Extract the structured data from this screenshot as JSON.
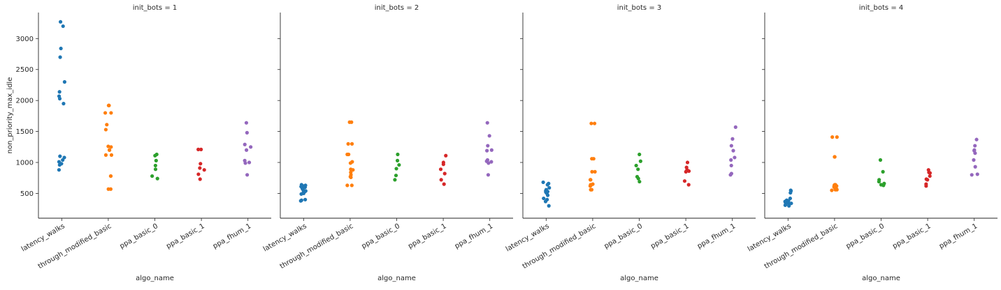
{
  "chart_data": {
    "type": "scatter",
    "kind": "strip",
    "xlabel": "algo_name",
    "ylabel": "non_priority_max_idle",
    "ylim": [
      100,
      3420
    ],
    "yticks": [
      500,
      1000,
      1500,
      2000,
      2500,
      3000
    ],
    "grid": false,
    "categories": [
      "latency_walks",
      "through_modified_basic",
      "ppa_basic_0",
      "ppa_basic_1",
      "ppa_fhum_1"
    ],
    "colors": [
      "#1f77b4",
      "#ff7f0e",
      "#2ca02c",
      "#d62728",
      "#9467bd"
    ],
    "facets": [
      {
        "title": "init_bots = 1",
        "values": {
          "latency_walks": [
            3270,
            3200,
            2840,
            2700,
            2300,
            2140,
            2070,
            2030,
            1950,
            1100,
            1080,
            1040,
            1010,
            980,
            960,
            880
          ],
          "through_modified_basic": [
            1920,
            1920,
            1800,
            1800,
            1610,
            1530,
            1260,
            1250,
            1200,
            1200,
            1120,
            1120,
            780,
            780,
            570,
            570
          ],
          "ppa_basic_0": [
            1130,
            1110,
            1030,
            950,
            890,
            780,
            740
          ],
          "ppa_basic_1": [
            1210,
            1210,
            980,
            910,
            880,
            810,
            730
          ],
          "ppa_fhum_1": [
            1640,
            1480,
            1290,
            1250,
            1200,
            1030,
            1000,
            990,
            800
          ]
        }
      },
      {
        "title": "init_bots = 2",
        "values": {
          "latency_walks": [
            640,
            630,
            620,
            610,
            600,
            580,
            560,
            540,
            530,
            520,
            500,
            490,
            400,
            390,
            380
          ],
          "through_modified_basic": [
            1650,
            1650,
            1300,
            1300,
            1130,
            1130,
            1010,
            990,
            890,
            880,
            840,
            800,
            770,
            760,
            630,
            630
          ],
          "ppa_basic_0": [
            1130,
            1030,
            960,
            900,
            790,
            720
          ],
          "ppa_basic_1": [
            1110,
            1000,
            970,
            890,
            820,
            720,
            650
          ],
          "ppa_fhum_1": [
            1640,
            1430,
            1270,
            1200,
            1190,
            1040,
            1020,
            1010,
            990,
            800
          ]
        }
      },
      {
        "title": "init_bots = 3",
        "values": {
          "latency_walks": [
            680,
            660,
            640,
            590,
            560,
            540,
            530,
            520,
            500,
            470,
            420,
            400,
            370,
            300
          ],
          "through_modified_basic": [
            1630,
            1630,
            1060,
            1060,
            850,
            850,
            720,
            720,
            650,
            640,
            630,
            620,
            560,
            560
          ],
          "ppa_basic_0": [
            1130,
            1020,
            950,
            890,
            770,
            740,
            690
          ],
          "ppa_basic_1": [
            1000,
            920,
            880,
            860,
            850,
            700,
            640
          ],
          "ppa_fhum_1": [
            1570,
            1380,
            1270,
            1190,
            1080,
            1040,
            950,
            820,
            800
          ]
        }
      },
      {
        "title": "init_bots = 4",
        "values": {
          "latency_walks": [
            550,
            540,
            510,
            420,
            390,
            380,
            370,
            360,
            350,
            340,
            330,
            320,
            310,
            300
          ],
          "through_modified_basic": [
            1410,
            1410,
            1090,
            1090,
            640,
            640,
            630,
            620,
            610,
            600,
            570,
            560,
            560,
            550
          ],
          "ppa_basic_0": [
            1040,
            850,
            720,
            690,
            660,
            640,
            630
          ],
          "ppa_basic_1": [
            880,
            840,
            830,
            780,
            730,
            720,
            650,
            620
          ],
          "ppa_fhum_1": [
            1370,
            1270,
            1200,
            1190,
            1150,
            1040,
            930,
            810,
            800
          ]
        }
      }
    ]
  }
}
